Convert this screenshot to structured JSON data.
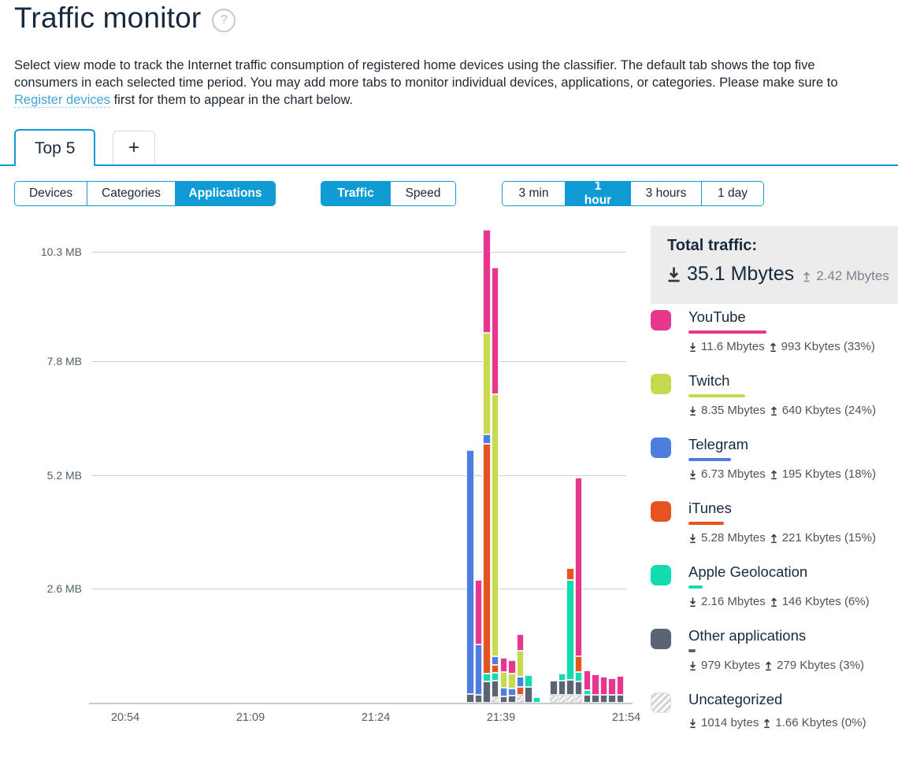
{
  "header": {
    "title": "Traffic monitor",
    "help_glyph": "?"
  },
  "description": {
    "before_link": "Select view mode to track the Internet traffic consumption of registered home devices using the classifier. The default tab shows the top five consumers in each selected time period. You may add more tabs to monitor individual devices, applications, or categories. Please make sure to ",
    "link_text": "Register devices",
    "after_link": " first for them to appear in the chart below."
  },
  "tabs": {
    "active_tab": "Top 5",
    "add_tab": "+"
  },
  "controls": {
    "view_modes": [
      {
        "label": "Devices",
        "selected": false
      },
      {
        "label": "Categories",
        "selected": false
      },
      {
        "label": "Applications",
        "selected": true
      }
    ],
    "metric_modes": [
      {
        "label": "Traffic",
        "selected": true
      },
      {
        "label": "Speed",
        "selected": false
      }
    ],
    "periods": [
      {
        "label": "3 min",
        "selected": false
      },
      {
        "label": "1 hour",
        "selected": true
      },
      {
        "label": "3 hours",
        "selected": false
      },
      {
        "label": "1 day",
        "selected": false
      }
    ]
  },
  "total": {
    "label": "Total traffic:",
    "download": "35.1 Mbytes",
    "upload": "2.42 Mbytes"
  },
  "colors": {
    "youtube": "#e7368d",
    "twitch": "#c7d94f",
    "telegram": "#4e7de0",
    "itunes": "#e55320",
    "applegeo": "#10dcb0",
    "other": "#5b6473",
    "uncategorized": "#e3e3e3",
    "accent": "#119bd4",
    "link": "#41a5d9",
    "grid": "#c9ced5"
  },
  "legend": [
    {
      "key": "youtube",
      "name": "YouTube",
      "down": "11.6 Mbytes",
      "up": "993 Kbytes",
      "percent": 33,
      "percent_label": "(33%)",
      "hatched": false
    },
    {
      "key": "twitch",
      "name": "Twitch",
      "down": "8.35 Mbytes",
      "up": "640 Kbytes",
      "percent": 24,
      "percent_label": "(24%)",
      "hatched": false
    },
    {
      "key": "telegram",
      "name": "Telegram",
      "down": "6.73 Mbytes",
      "up": "195 Kbytes",
      "percent": 18,
      "percent_label": "(18%)",
      "hatched": false
    },
    {
      "key": "itunes",
      "name": "iTunes",
      "down": "5.28 Mbytes",
      "up": "221 Kbytes",
      "percent": 15,
      "percent_label": "(15%)",
      "hatched": false
    },
    {
      "key": "applegeo",
      "name": "Apple Geolocation",
      "down": "2.16 Mbytes",
      "up": "146 Kbytes",
      "percent": 6,
      "percent_label": "(6%)",
      "hatched": false
    },
    {
      "key": "other",
      "name": "Other applications",
      "down": "979 Kbytes",
      "up": "279 Kbytes",
      "percent": 3,
      "percent_label": "(3%)",
      "hatched": false
    },
    {
      "key": "uncategorized",
      "name": "Uncategorized",
      "down": "1014 bytes",
      "up": "1.66 Kbytes",
      "percent": 0,
      "percent_label": "(0%)",
      "hatched": true
    }
  ],
  "chart_data": {
    "type": "stacked-bar",
    "unit": "MB",
    "orientation": "vertical",
    "grid": true,
    "y_gridlines": [
      {
        "label": "10.3 MB",
        "mb": 10.3
      },
      {
        "label": "7.8 MB",
        "mb": 7.8
      },
      {
        "label": "5.2 MB",
        "mb": 5.2
      },
      {
        "label": "2.6 MB",
        "mb": 2.6
      }
    ],
    "x_ticks": [
      "20:54",
      "21:09",
      "21:24",
      "21:39",
      "21:54"
    ],
    "x_range_minutes": 60,
    "bar_interval_minutes": 1,
    "bars": [
      {
        "minute": 41,
        "time": "21:35",
        "segments": [
          {
            "app": "other",
            "mb": 0.2
          },
          {
            "app": "telegram",
            "mb": 5.57
          }
        ]
      },
      {
        "minute": 42,
        "time": "21:36",
        "segments": [
          {
            "app": "other",
            "mb": 0.18
          },
          {
            "app": "telegram",
            "mb": 1.15
          },
          {
            "app": "youtube",
            "mb": 1.47
          }
        ]
      },
      {
        "minute": 43,
        "time": "21:37",
        "segments": [
          {
            "app": "other",
            "mb": 0.48
          },
          {
            "app": "applegeo",
            "mb": 0.18
          },
          {
            "app": "itunes",
            "mb": 5.25
          },
          {
            "app": "telegram",
            "mb": 0.21
          },
          {
            "app": "twitch",
            "mb": 2.33
          },
          {
            "app": "youtube",
            "mb": 2.35
          }
        ]
      },
      {
        "minute": 44,
        "time": "21:38",
        "segments": [
          {
            "app": "uncategorized",
            "mb": 0.13
          },
          {
            "app": "other",
            "mb": 0.38
          },
          {
            "app": "applegeo",
            "mb": 0.18
          },
          {
            "app": "itunes",
            "mb": 0.18
          },
          {
            "app": "telegram",
            "mb": 0.2
          },
          {
            "app": "twitch",
            "mb": 5.97
          },
          {
            "app": "youtube",
            "mb": 2.9
          }
        ]
      },
      {
        "minute": 45,
        "time": "21:39",
        "segments": [
          {
            "app": "other",
            "mb": 0.14
          },
          {
            "app": "telegram",
            "mb": 0.2
          },
          {
            "app": "twitch",
            "mb": 0.36
          },
          {
            "app": "youtube",
            "mb": 0.32
          }
        ]
      },
      {
        "minute": 46,
        "time": "21:40",
        "segments": [
          {
            "app": "other",
            "mb": 0.16
          },
          {
            "app": "telegram",
            "mb": 0.16
          },
          {
            "app": "twitch",
            "mb": 0.34
          },
          {
            "app": "youtube",
            "mb": 0.32
          }
        ]
      },
      {
        "minute": 47,
        "time": "21:41",
        "segments": [
          {
            "app": "uncategorized",
            "mb": 0.18
          },
          {
            "app": "itunes",
            "mb": 0.18
          },
          {
            "app": "telegram",
            "mb": 0.23
          },
          {
            "app": "twitch",
            "mb": 0.59
          },
          {
            "app": "youtube",
            "mb": 0.38
          }
        ]
      },
      {
        "minute": 48,
        "time": "21:42",
        "segments": [
          {
            "app": "other",
            "mb": 0.36
          },
          {
            "app": "applegeo",
            "mb": 0.27
          }
        ]
      },
      {
        "minute": 49,
        "time": "21:43",
        "segments": [
          {
            "app": "applegeo",
            "mb": 0.13
          }
        ]
      },
      {
        "minute": 51,
        "time": "21:45",
        "segments": [
          {
            "app": "uncategorized",
            "mb": 0.18
          },
          {
            "app": "other",
            "mb": 0.32
          }
        ]
      },
      {
        "minute": 52,
        "time": "21:46",
        "segments": [
          {
            "app": "uncategorized",
            "mb": 0.18
          },
          {
            "app": "other",
            "mb": 0.32
          },
          {
            "app": "applegeo",
            "mb": 0.16
          }
        ]
      },
      {
        "minute": 53,
        "time": "21:47",
        "segments": [
          {
            "app": "uncategorized",
            "mb": 0.18
          },
          {
            "app": "other",
            "mb": 0.34
          },
          {
            "app": "applegeo",
            "mb": 2.28
          },
          {
            "app": "itunes",
            "mb": 0.27
          }
        ]
      },
      {
        "minute": 54,
        "time": "21:48",
        "segments": [
          {
            "app": "uncategorized",
            "mb": 0.18
          },
          {
            "app": "other",
            "mb": 0.3
          },
          {
            "app": "applegeo",
            "mb": 0.23
          },
          {
            "app": "itunes",
            "mb": 0.36
          },
          {
            "app": "youtube",
            "mb": 4.07
          }
        ]
      },
      {
        "minute": 55,
        "time": "21:49",
        "segments": [
          {
            "app": "other",
            "mb": 0.18
          },
          {
            "app": "applegeo",
            "mb": 0.11
          },
          {
            "app": "youtube",
            "mb": 0.45
          }
        ]
      },
      {
        "minute": 56,
        "time": "21:50",
        "segments": [
          {
            "app": "other",
            "mb": 0.18
          },
          {
            "app": "youtube",
            "mb": 0.47
          }
        ]
      },
      {
        "minute": 57,
        "time": "21:51",
        "segments": [
          {
            "app": "other",
            "mb": 0.18
          },
          {
            "app": "youtube",
            "mb": 0.41
          }
        ]
      },
      {
        "minute": 58,
        "time": "21:52",
        "segments": [
          {
            "app": "other",
            "mb": 0.18
          },
          {
            "app": "youtube",
            "mb": 0.38
          }
        ]
      },
      {
        "minute": 59,
        "time": "21:53",
        "segments": [
          {
            "app": "other",
            "mb": 0.18
          },
          {
            "app": "youtube",
            "mb": 0.43
          }
        ]
      }
    ]
  }
}
